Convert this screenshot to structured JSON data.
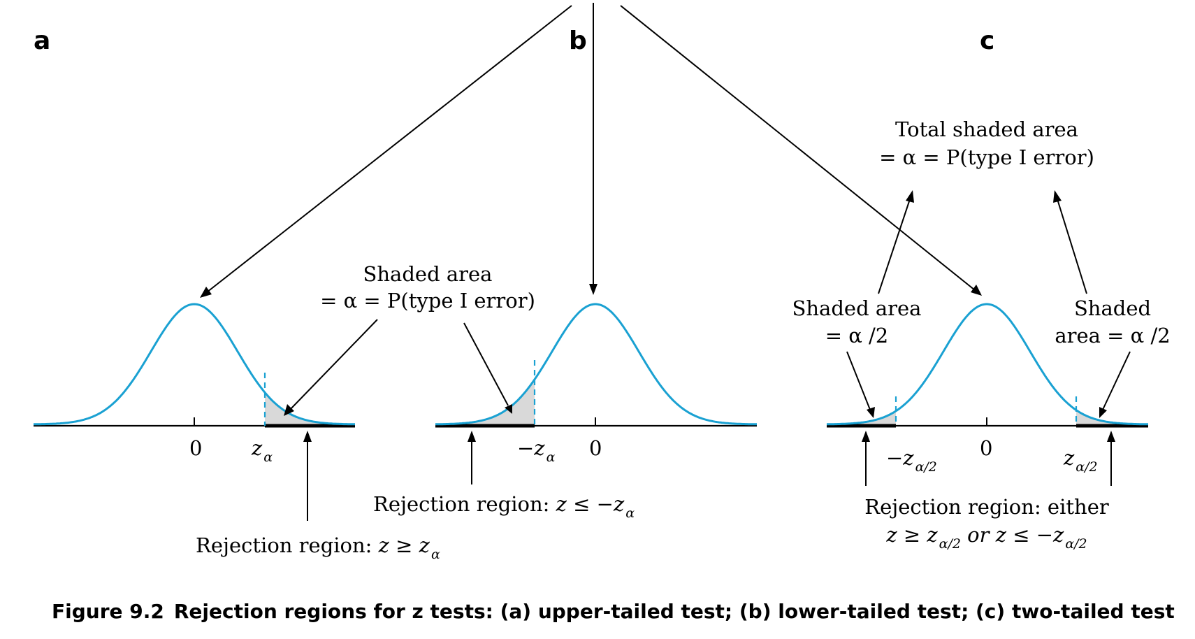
{
  "panels": {
    "a": {
      "letter": "a",
      "tick_zero": "0",
      "tick_crit": "z",
      "tick_crit_sub": "α",
      "shaded_line1": "Shaded area",
      "shaded_line2": "= α = P(type I error)",
      "rejection_prefix": "Rejection region: ",
      "rejection_expr": "z ≥ z",
      "rejection_sub": "α"
    },
    "b": {
      "letter": "b",
      "tick_zero": "0",
      "tick_crit": "−z",
      "tick_crit_sub": "α",
      "rejection_prefix": "Rejection region: ",
      "rejection_expr": "z ≤ −z",
      "rejection_sub": "α"
    },
    "c": {
      "letter": "c",
      "tick_zero": "0",
      "tick_left": "−z",
      "tick_left_sub": "α/2",
      "tick_right": "z",
      "tick_right_sub": "α/2",
      "total_line1": "Total shaded area",
      "total_line2": "= α = P(type I error)",
      "left_line1": "Shaded area",
      "left_line2": "= α /2",
      "right_line1": "Shaded",
      "right_line2": "area = α /2",
      "rejection_line1": "Rejection region: either",
      "rejection_l2_a": "z ≥ z",
      "rejection_l2_a_sub": "α/2",
      "rejection_l2_b": " or z ≤ −z",
      "rejection_l2_b_sub": "α/2"
    }
  },
  "caption": {
    "label": "Figure 9.2",
    "text": "Rejection regions for z tests: (a) upper-tailed test; (b) lower-tailed test; (c) two-tailed test"
  },
  "colors": {
    "curve": "#1aa1d2",
    "shade": "#d9d9d9"
  }
}
